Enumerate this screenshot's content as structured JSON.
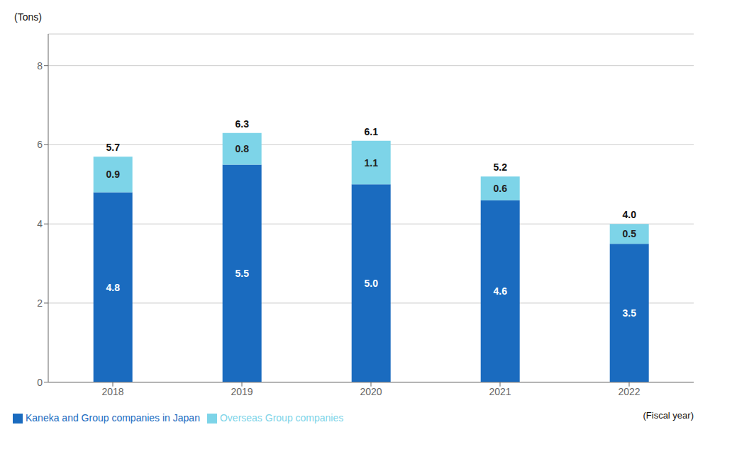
{
  "chart_data": {
    "type": "bar",
    "stacked": true,
    "categories": [
      "2018",
      "2019",
      "2020",
      "2021",
      "2022"
    ],
    "series": [
      {
        "name": "Kaneka and Group companies in Japan",
        "color": "#1a6bbf",
        "values": [
          4.8,
          5.5,
          5.0,
          4.6,
          3.5
        ],
        "value_labels": [
          "4.8",
          "5.5",
          "5.0",
          "4.6",
          "3.5"
        ]
      },
      {
        "name": "Overseas Group companies",
        "color": "#7dd4e8",
        "values": [
          0.9,
          0.8,
          1.1,
          0.6,
          0.5
        ]
      }
    ],
    "totals": [
      5.7,
      6.3,
      6.1,
      5.2,
      4.0
    ],
    "total_labels": [
      "5.7",
      "6.3",
      "6.1",
      "5.2",
      "4.0"
    ],
    "ylabel": "(Tons)",
    "xlabel": "(Fiscal year)",
    "ylim": [
      0,
      8.8
    ],
    "yticks": [
      0,
      2,
      4,
      6,
      8
    ],
    "grid": true,
    "legend": "lower left",
    "data_labels": true
  }
}
